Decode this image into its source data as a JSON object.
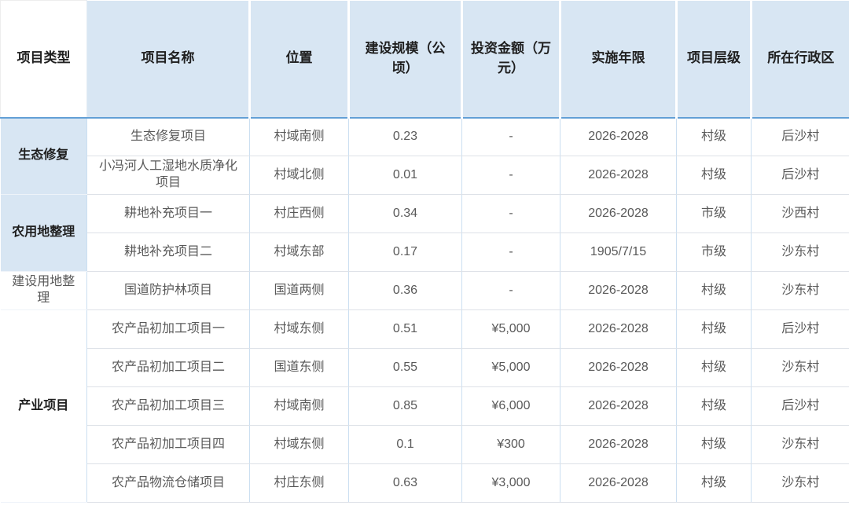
{
  "colors": {
    "header_bg": "#d8e6f3",
    "header_rule": "#63a0d6",
    "border_v": "#cbdff1",
    "border_h": "#dde1e7",
    "text_dark": "#1f1f1f",
    "text_body": "#595959",
    "page_bg": "#ffffff"
  },
  "table": {
    "columns": [
      "项目类型",
      "项目名称",
      "位置",
      "建设规模（公顷）",
      "投资金额（万元）",
      "实施年限",
      "项目层级",
      "所在行政区"
    ],
    "groups": [
      {
        "type": "生态修复",
        "rows": [
          {
            "name": "生态修复项目",
            "location": "村域南侧",
            "scale": "0.23",
            "investment": "-",
            "years": "2026-2028",
            "level": "村级",
            "district": "后沙村"
          },
          {
            "name": "小冯河人工湿地水质净化项目",
            "location": "村域北侧",
            "scale": "0.01",
            "investment": "-",
            "years": "2026-2028",
            "level": "村级",
            "district": "后沙村"
          }
        ]
      },
      {
        "type": "农用地整理",
        "rows": [
          {
            "name": "耕地补充项目一",
            "location": "村庄西侧",
            "scale": "0.34",
            "investment": "-",
            "years": "2026-2028",
            "level": "市级",
            "district": "沙西村"
          },
          {
            "name": "耕地补充项目二",
            "location": "村域东部",
            "scale": "0.17",
            "investment": "-",
            "years": "1905/7/15",
            "level": "市级",
            "district": "沙东村"
          }
        ]
      },
      {
        "type": "建设用地整理",
        "rows": [
          {
            "name": "国道防护林项目",
            "location": "国道两侧",
            "scale": "0.36",
            "investment": "-",
            "years": "2026-2028",
            "level": "村级",
            "district": "沙东村"
          }
        ]
      },
      {
        "type": "产业项目",
        "rows": [
          {
            "name": "农产品初加工项目一",
            "location": "村域东侧",
            "scale": "0.51",
            "investment": "¥5,000",
            "years": "2026-2028",
            "level": "村级",
            "district": "后沙村"
          },
          {
            "name": "农产品初加工项目二",
            "location": "国道东侧",
            "scale": "0.55",
            "investment": "¥5,000",
            "years": "2026-2028",
            "level": "村级",
            "district": "沙东村"
          },
          {
            "name": "农产品初加工项目三",
            "location": "村域南侧",
            "scale": "0.85",
            "investment": "¥6,000",
            "years": "2026-2028",
            "level": "村级",
            "district": "后沙村"
          },
          {
            "name": "农产品初加工项目四",
            "location": "村域东侧",
            "scale": "0.1",
            "investment": "¥300",
            "years": "2026-2028",
            "level": "村级",
            "district": "沙东村"
          },
          {
            "name": "农产品物流仓储项目",
            "location": "村庄东侧",
            "scale": "0.63",
            "investment": "¥3,000",
            "years": "2026-2028",
            "level": "村级",
            "district": "沙东村"
          }
        ]
      }
    ]
  }
}
